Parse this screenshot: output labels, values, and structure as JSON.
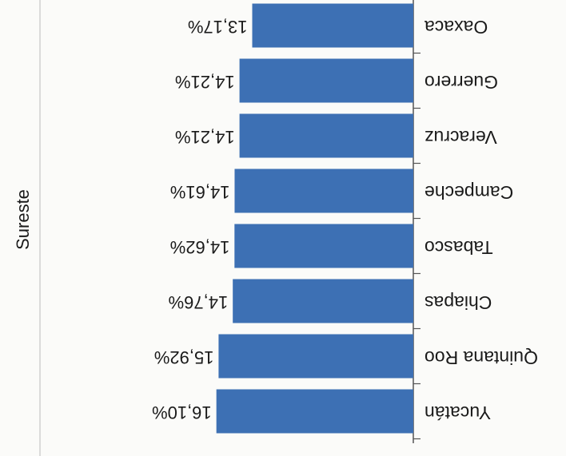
{
  "chart_data": {
    "type": "bar",
    "orientation": "horizontal",
    "group_label": "Sureste",
    "categories": [
      "Yucatán",
      "Quintana Roo",
      "Chiapas",
      "Tabasco",
      "Campeche",
      "Veracruz",
      "Guerrero",
      "Oaxaca"
    ],
    "values": [
      16.1,
      15.92,
      14.76,
      14.62,
      14.61,
      14.21,
      14.21,
      13.17
    ],
    "value_labels": [
      "16,10%",
      "15,92%",
      "14,76%",
      "14,62%",
      "14,61%",
      "14,21%",
      "14,21%",
      "13,17%"
    ],
    "color": "#3d70b4"
  }
}
